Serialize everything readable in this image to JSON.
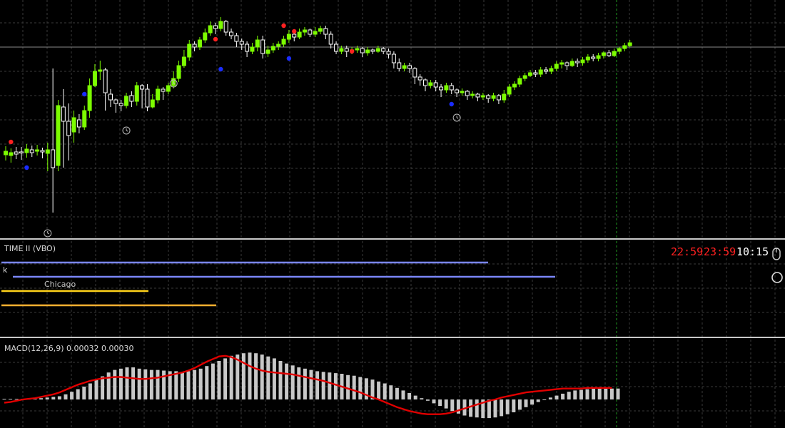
{
  "colors": {
    "bull_candle": "#7CFC00",
    "bear_candle": "#ffffff",
    "grid": "#3a3a3a",
    "signal_up": "#ff2020",
    "signal_down": "#1a2cff",
    "macd_hist": "#c8c8c8",
    "macd_signal": "#e00000",
    "session_blue": "#7a86ff",
    "session_yellow": "#ffd21a",
    "session_orange": "#ffb030",
    "clock_red": "#ff2020",
    "clock_white": "#ffffff"
  },
  "time_indicator": {
    "title": "TIME II (VBO)",
    "letter_k": "k",
    "city": "Chicago",
    "clocks": [
      "22:59",
      "23:59",
      "10:15"
    ]
  },
  "macd_indicator": {
    "title": "MACD(12,26,9) 0.00032 0.00030"
  },
  "chart_data": [
    {
      "type": "candlestick",
      "title": "",
      "grid": true,
      "current_price_level": 66,
      "candles_note": "price in inverted pane units (higher number = lower price)",
      "candles": [
        [
          217,
          212,
          225,
          205
        ],
        [
          218,
          214,
          228,
          208
        ],
        [
          213,
          216,
          223,
          206
        ],
        [
          213,
          214,
          224,
          206
        ],
        [
          214,
          209,
          221,
          202
        ],
        [
          210,
          214,
          220,
          204
        ],
        [
          212,
          210,
          218,
          203
        ],
        [
          211,
          213,
          222,
          207
        ],
        [
          215,
          210,
          240,
          200
        ],
        [
          210,
          235,
          298,
          96
        ],
        [
          232,
          148,
          240,
          140
        ],
        [
          150,
          170,
          235,
          125
        ],
        [
          170,
          190,
          225,
          145
        ],
        [
          185,
          165,
          200,
          155
        ],
        [
          168,
          178,
          187,
          160
        ],
        [
          178,
          155,
          182,
          148
        ],
        [
          155,
          120,
          165,
          110
        ],
        [
          120,
          100,
          122,
          90
        ],
        [
          100,
          98,
          112,
          85
        ],
        [
          98,
          130,
          155,
          95
        ],
        [
          132,
          140,
          150,
          125
        ],
        [
          140,
          145,
          158,
          138
        ],
        [
          145,
          148,
          156,
          140
        ],
        [
          148,
          135,
          152,
          130
        ],
        [
          134,
          142,
          150,
          128
        ],
        [
          142,
          120,
          148,
          115
        ],
        [
          120,
          125,
          152,
          118
        ],
        [
          125,
          150,
          156,
          118
        ],
        [
          150,
          140,
          152,
          132
        ],
        [
          140,
          125,
          145,
          120
        ],
        [
          125,
          128,
          140,
          122
        ],
        [
          128,
          120,
          132,
          116
        ],
        [
          120,
          110,
          124,
          100
        ],
        [
          110,
          92,
          115,
          85
        ],
        [
          92,
          80,
          95,
          70
        ],
        [
          80,
          62,
          85,
          56
        ],
        [
          62,
          66,
          72,
          58
        ],
        [
          66,
          56,
          70,
          52
        ],
        [
          56,
          46,
          60,
          40
        ],
        [
          46,
          36,
          50,
          30
        ],
        [
          36,
          40,
          48,
          32
        ],
        [
          40,
          30,
          44,
          24
        ],
        [
          30,
          45,
          50,
          28
        ],
        [
          45,
          50,
          55,
          40
        ],
        [
          50,
          58,
          66,
          46
        ],
        [
          58,
          62,
          70,
          54
        ],
        [
          62,
          72,
          80,
          58
        ],
        [
          72,
          66,
          76,
          60
        ],
        [
          66,
          56,
          72,
          50
        ],
        [
          56,
          75,
          82,
          50
        ],
        [
          75,
          70,
          80,
          64
        ],
        [
          70,
          65,
          74,
          60
        ],
        [
          65,
          62,
          70,
          58
        ],
        [
          62,
          55,
          66,
          50
        ],
        [
          55,
          48,
          60,
          42
        ],
        [
          48,
          52,
          58,
          45
        ],
        [
          52,
          45,
          55,
          40
        ],
        [
          45,
          42,
          50,
          38
        ],
        [
          42,
          48,
          52,
          40
        ],
        [
          48,
          44,
          52,
          38
        ],
        [
          44,
          40,
          48,
          36
        ],
        [
          40,
          48,
          55,
          36
        ],
        [
          48,
          62,
          68,
          44
        ],
        [
          62,
          72,
          76,
          58
        ],
        [
          72,
          68,
          76,
          64
        ],
        [
          68,
          72,
          80,
          64
        ],
        [
          72,
          70,
          76,
          66
        ],
        [
          70,
          68,
          74,
          64
        ],
        [
          68,
          74,
          80,
          66
        ],
        [
          74,
          70,
          78,
          66
        ],
        [
          70,
          72,
          76,
          68
        ],
        [
          72,
          68,
          74,
          64
        ],
        [
          68,
          72,
          76,
          66
        ],
        [
          72,
          76,
          82,
          68
        ],
        [
          76,
          88,
          96,
          72
        ],
        [
          88,
          96,
          100,
          82
        ],
        [
          96,
          92,
          100,
          88
        ],
        [
          92,
          96,
          102,
          88
        ],
        [
          96,
          108,
          118,
          94
        ],
        [
          108,
          112,
          120,
          104
        ],
        [
          112,
          120,
          128,
          110
        ],
        [
          120,
          116,
          124,
          112
        ],
        [
          116,
          122,
          128,
          112
        ],
        [
          122,
          126,
          136,
          118
        ],
        [
          126,
          120,
          130,
          116
        ],
        [
          120,
          126,
          132,
          116
        ],
        [
          126,
          130,
          136,
          124
        ],
        [
          130,
          128,
          134,
          124
        ],
        [
          128,
          134,
          140,
          126
        ],
        [
          134,
          132,
          138,
          128
        ],
        [
          132,
          136,
          142,
          130
        ],
        [
          136,
          134,
          140,
          130
        ],
        [
          134,
          138,
          144,
          132
        ],
        [
          138,
          134,
          142,
          130
        ],
        [
          134,
          140,
          146,
          132
        ],
        [
          140,
          132,
          144,
          126
        ],
        [
          132,
          122,
          136,
          118
        ],
        [
          122,
          118,
          126,
          114
        ],
        [
          118,
          110,
          122,
          106
        ],
        [
          110,
          106,
          114,
          102
        ],
        [
          106,
          102,
          108,
          98
        ],
        [
          102,
          104,
          108,
          98
        ],
        [
          104,
          98,
          108,
          94
        ],
        [
          98,
          100,
          104,
          94
        ],
        [
          100,
          96,
          104,
          92
        ],
        [
          96,
          90,
          100,
          86
        ],
        [
          90,
          88,
          96,
          84
        ],
        [
          88,
          92,
          98,
          86
        ],
        [
          92,
          86,
          94,
          82
        ],
        [
          86,
          88,
          94,
          82
        ],
        [
          88,
          84,
          92,
          80
        ],
        [
          84,
          80,
          88,
          76
        ],
        [
          80,
          82,
          86,
          76
        ],
        [
          82,
          78,
          86,
          74
        ],
        [
          78,
          74,
          82,
          72
        ],
        [
          74,
          78,
          80,
          70
        ],
        [
          78,
          72,
          80,
          68
        ],
        [
          72,
          68,
          76,
          66
        ],
        [
          68,
          64,
          72,
          60
        ],
        [
          64,
          60,
          66,
          56
        ]
      ],
      "signals": [
        {
          "color": "up",
          "i": 1,
          "price": 199
        },
        {
          "color": "down",
          "i": 4,
          "price": 235
        },
        {
          "color": "down",
          "i": 15,
          "price": 132
        },
        {
          "color": "up",
          "i": 40,
          "price": 55
        },
        {
          "color": "down",
          "i": 41,
          "price": 97
        },
        {
          "color": "up",
          "i": 53,
          "price": 36
        },
        {
          "color": "up",
          "i": 55,
          "price": 44
        },
        {
          "color": "down",
          "i": 54,
          "price": 82
        },
        {
          "color": "up",
          "i": 66,
          "price": 72
        },
        {
          "color": "down",
          "i": 85,
          "price": 146
        }
      ],
      "clock_markers": [
        {
          "i": 8,
          "price": 327
        },
        {
          "i": 23,
          "price": 183
        },
        {
          "i": 32,
          "price": 117
        },
        {
          "i": 86,
          "price": 165
        }
      ]
    },
    {
      "type": "bar",
      "title": "MACD(12,26,9) 0.00032 0.00030",
      "histogram": [
        1,
        1,
        1,
        1,
        1,
        2,
        2,
        3,
        4,
        5,
        8,
        12,
        16,
        20,
        25,
        30,
        36,
        42,
        46,
        48,
        50,
        50,
        48,
        47,
        46,
        46,
        45,
        44,
        44,
        43,
        44,
        46,
        48,
        52,
        56,
        60,
        64,
        68,
        70,
        72,
        73,
        72,
        70,
        67,
        64,
        60,
        56,
        53,
        50,
        48,
        46,
        44,
        43,
        42,
        41,
        40,
        38,
        37,
        35,
        33,
        31,
        28,
        25,
        22,
        18,
        14,
        10,
        6,
        2,
        -2,
        -6,
        -10,
        -14,
        -18,
        -22,
        -25,
        -27,
        -28,
        -29,
        -29,
        -28,
        -26,
        -23,
        -20,
        -16,
        -12,
        -8,
        -4,
        0,
        3,
        6,
        9,
        12,
        14,
        15,
        16,
        17,
        17,
        17,
        17,
        17
      ],
      "signal": [
        -5,
        -4,
        -2,
        0,
        1,
        2,
        4,
        6,
        8,
        11,
        15,
        19,
        23,
        26,
        29,
        31,
        33,
        34,
        35,
        35,
        34,
        33,
        32,
        32,
        33,
        34,
        36,
        38,
        40,
        42,
        45,
        49,
        54,
        59,
        63,
        67,
        68,
        66,
        62,
        57,
        52,
        48,
        45,
        43,
        42,
        41,
        40,
        39,
        37,
        35,
        33,
        31,
        29,
        26,
        23,
        20,
        17,
        14,
        11,
        7,
        3,
        0,
        -4,
        -8,
        -12,
        -15,
        -18,
        -20,
        -22,
        -23,
        -23,
        -23,
        -22,
        -20,
        -17,
        -14,
        -11,
        -8,
        -5,
        -2,
        0,
        3,
        5,
        7,
        9,
        11,
        12,
        13,
        14,
        15,
        16,
        17,
        17,
        17,
        17,
        18,
        18,
        18,
        18,
        18
      ]
    }
  ]
}
